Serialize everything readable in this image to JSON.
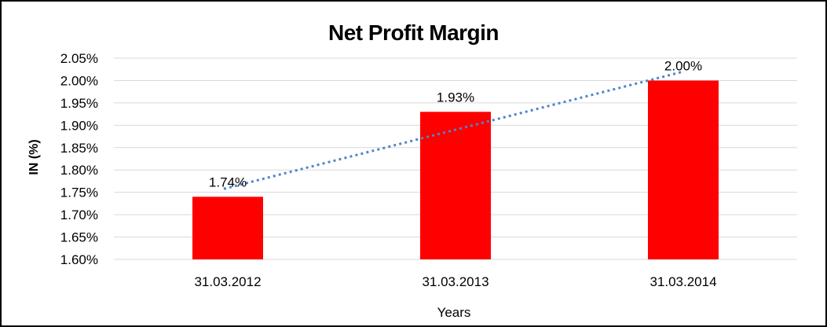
{
  "chart_data": {
    "type": "bar",
    "title": "Net Profit Margin",
    "xlabel": "Years",
    "ylabel": "IN (%)",
    "categories": [
      "31.03.2012",
      "31.03.2013",
      "31.03.2014"
    ],
    "values": [
      1.74,
      1.93,
      2.0
    ],
    "data_labels": [
      "1.74%",
      "1.93%",
      "2.00%"
    ],
    "yticks": [
      "1.60%",
      "1.65%",
      "1.70%",
      "1.75%",
      "1.80%",
      "1.85%",
      "1.90%",
      "1.95%",
      "2.00%",
      "2.05%"
    ],
    "ylim": [
      1.6,
      2.05
    ],
    "ytick_step": 0.05,
    "grid": true,
    "legend": "none",
    "bar_color": "#FF0000",
    "gridline_color": "#D9D9D9",
    "text_color": "#000000",
    "trendline": {
      "fit": "linear",
      "style": "dotted",
      "color": "#4E86C8"
    }
  }
}
